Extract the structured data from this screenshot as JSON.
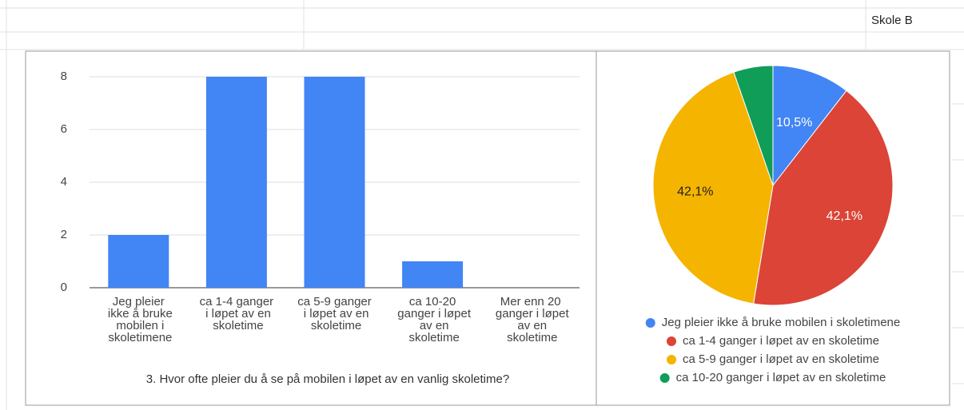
{
  "sheet": {
    "cell": "Skole B"
  },
  "chart_data": [
    {
      "type": "bar",
      "x_label": "3. Hvor ofte pleier du å se på mobilen i løpet av en vanlig skoletime?",
      "categories": [
        "Jeg pleier ikke å bruke mobilen i skoletimene",
        "ca 1-4 ganger i løpet av en skoletime",
        "ca 5-9 ganger i løpet av en skoletime",
        "ca 10-20 ganger i løpet av en skoletime",
        "Mer enn 20 ganger i løpet av en skoletime"
      ],
      "values": [
        2,
        8,
        8,
        1,
        0
      ],
      "color": "#4285f4",
      "ylim": [
        0,
        8
      ],
      "yticks": [
        0,
        2,
        4,
        6,
        8
      ],
      "grid": true
    },
    {
      "type": "pie",
      "categories": [
        "Jeg pleier ikke å bruke mobilen i skoletimene",
        "ca 1-4 ganger i løpet av en skoletime",
        "ca 5-9 ganger i løpet av en skoletime",
        "ca 10-20 ganger i løpet av en skoletime"
      ],
      "values": [
        10.5,
        42.1,
        42.1,
        5.3
      ],
      "value_labels": [
        "10,5%",
        "42,1%",
        "42,1%",
        null
      ],
      "colors": [
        "#4285f4",
        "#db4437",
        "#f4b400",
        "#0f9d58"
      ],
      "legend": "bottom"
    }
  ]
}
